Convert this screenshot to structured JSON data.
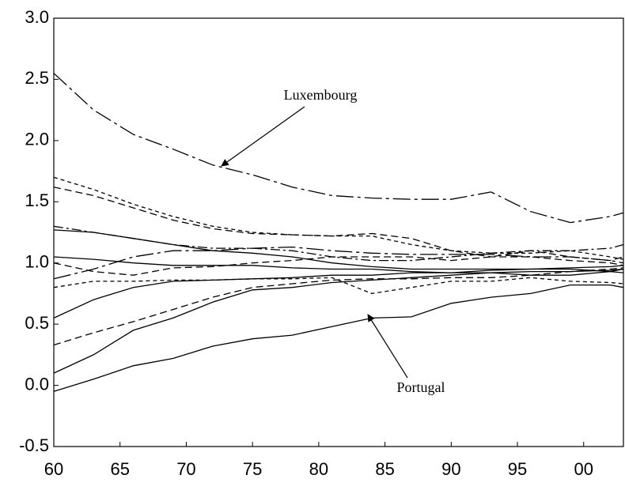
{
  "chart_data": {
    "type": "line",
    "x": [
      1960,
      1963,
      1966,
      1969,
      1972,
      1975,
      1978,
      1981,
      1984,
      1987,
      1990,
      1993,
      1996,
      1999,
      2002,
      2003
    ],
    "series": [
      {
        "color": "#000000",
        "dash": "long",
        "values": [
          2.55,
          2.25,
          2.05,
          1.93,
          1.8,
          1.72,
          1.62,
          1.55,
          1.53,
          1.52,
          1.52,
          1.58,
          1.42,
          1.33,
          1.38,
          1.41
        ]
      },
      {
        "color": "#000000",
        "dash": "solid",
        "values": [
          -0.05,
          0.05,
          0.16,
          0.22,
          0.32,
          0.38,
          0.41,
          0.48,
          0.55,
          0.56,
          0.67,
          0.72,
          0.75,
          0.82,
          0.82,
          0.8
        ]
      },
      {
        "color": "#000000",
        "dash": "solid",
        "values": [
          0.1,
          0.25,
          0.45,
          0.55,
          0.68,
          0.78,
          0.8,
          0.84,
          0.86,
          0.88,
          0.9,
          0.92,
          0.9,
          0.9,
          0.93,
          0.95
        ]
      },
      {
        "color": "#000000",
        "dash": "medium",
        "values": [
          0.33,
          0.43,
          0.52,
          0.62,
          0.72,
          0.8,
          0.83,
          0.86,
          0.87,
          0.87,
          0.88,
          0.88,
          0.9,
          0.93,
          0.95,
          0.96
        ]
      },
      {
        "color": "#000000",
        "dash": "solid",
        "values": [
          0.55,
          0.7,
          0.8,
          0.85,
          0.86,
          0.87,
          0.88,
          0.9,
          0.9,
          0.92,
          0.92,
          0.94,
          0.95,
          0.96,
          0.97,
          0.98
        ]
      },
      {
        "color": "#000000",
        "dash": "short",
        "values": [
          1.7,
          1.6,
          1.48,
          1.38,
          1.3,
          1.25,
          1.23,
          1.22,
          1.22,
          1.15,
          1.1,
          1.08,
          1.08,
          1.1,
          1.05,
          1.03
        ]
      },
      {
        "color": "#000000",
        "dash": "medium",
        "values": [
          1.62,
          1.55,
          1.45,
          1.35,
          1.28,
          1.24,
          1.23,
          1.22,
          1.24,
          1.2,
          1.1,
          1.05,
          1.05,
          1.02,
          1.0,
          0.98
        ]
      },
      {
        "color": "#000000",
        "dash": "dashdot",
        "values": [
          1.3,
          1.25,
          1.2,
          1.15,
          1.12,
          1.12,
          1.1,
          1.05,
          1.02,
          1.02,
          1.05,
          1.08,
          1.1,
          1.1,
          1.12,
          1.15
        ]
      },
      {
        "color": "#000000",
        "dash": "solid",
        "values": [
          1.27,
          1.25,
          1.2,
          1.15,
          1.1,
          1.08,
          1.05,
          1.0,
          0.97,
          0.95,
          0.95,
          0.95,
          0.95,
          0.95,
          0.93,
          0.92
        ]
      },
      {
        "color": "#000000",
        "dash": "solid",
        "values": [
          1.05,
          1.03,
          1.0,
          0.98,
          0.98,
          0.98,
          0.96,
          0.95,
          0.95,
          0.93,
          0.92,
          0.92,
          0.93,
          0.93,
          0.94,
          0.95
        ]
      },
      {
        "color": "#000000",
        "dash": "long",
        "values": [
          0.87,
          0.95,
          1.05,
          1.1,
          1.1,
          1.12,
          1.13,
          1.1,
          1.08,
          1.07,
          1.07,
          1.07,
          1.05,
          1.05,
          1.02,
          1.0
        ]
      },
      {
        "color": "#000000",
        "dash": "short",
        "values": [
          0.8,
          0.85,
          0.85,
          0.86,
          0.86,
          0.87,
          0.87,
          0.88,
          0.75,
          0.8,
          0.85,
          0.85,
          0.88,
          0.85,
          0.84,
          0.83
        ]
      },
      {
        "color": "#000000",
        "dash": "medium",
        "values": [
          1.0,
          0.93,
          0.9,
          0.96,
          0.97,
          1.0,
          1.02,
          1.05,
          1.05,
          1.05,
          1.02,
          1.05,
          1.1,
          1.05,
          1.02,
          1.05
        ]
      }
    ],
    "annotations": [
      {
        "text": "Luxembourg"
      },
      {
        "text": "Portugal"
      }
    ],
    "xlim": [
      1960,
      2003
    ],
    "xticks": [
      {
        "value": 1960,
        "label": "60"
      },
      {
        "value": 1965,
        "label": "65"
      },
      {
        "value": 1970,
        "label": "70"
      },
      {
        "value": 1975,
        "label": "75"
      },
      {
        "value": 1980,
        "label": "80"
      },
      {
        "value": 1985,
        "label": "85"
      },
      {
        "value": 1990,
        "label": "90"
      },
      {
        "value": 1995,
        "label": "95"
      },
      {
        "value": 2000,
        "label": "00"
      }
    ],
    "ylim": [
      -0.5,
      3.0
    ],
    "yticks": [
      -0.5,
      {
        "value": 0,
        "label": "0.0"
      },
      0.5,
      {
        "value": 1,
        "label": "1.0"
      },
      1.5,
      {
        "value": 2,
        "label": "2.0"
      },
      2.5,
      {
        "value": 3,
        "label": "3.0"
      }
    ],
    "grid": false
  }
}
